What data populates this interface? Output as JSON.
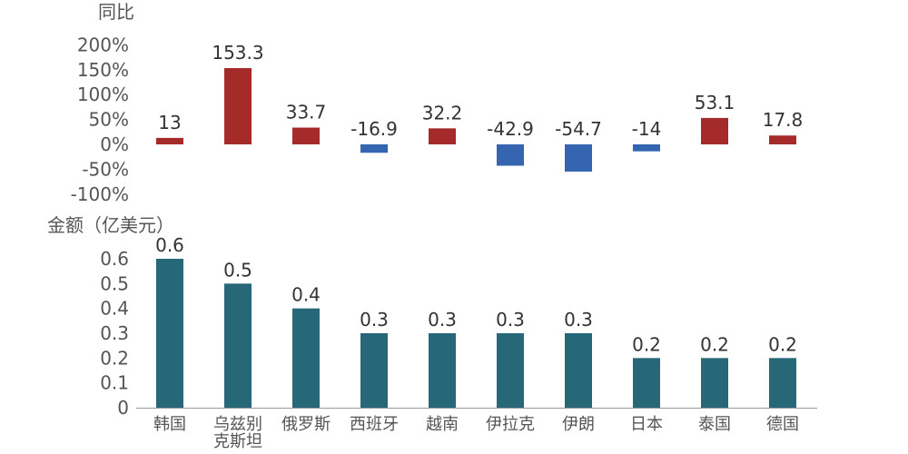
{
  "colors": {
    "positive": "#a52a2a",
    "negative": "#3565b0",
    "amount": "#266877",
    "axis": "#999999",
    "text": "#555555"
  },
  "chart_data": [
    {
      "type": "bar",
      "title": "同比",
      "yticks": [
        "200%",
        "150%",
        "100%",
        "50%",
        "0%",
        "-50%",
        "-100%"
      ],
      "ylim": [
        -100,
        200
      ],
      "categories": [
        "韩国",
        "乌兹别克斯坦",
        "俄罗斯",
        "西班牙",
        "越南",
        "伊拉克",
        "伊朗",
        "日本",
        "泰国",
        "德国"
      ],
      "values": [
        13,
        153.3,
        33.7,
        -16.9,
        32.2,
        -42.9,
        -54.7,
        -14,
        53.1,
        17.8
      ],
      "value_labels": [
        "13",
        "153.3",
        "33.7",
        "-16.9",
        "32.2",
        "-42.9",
        "-54.7",
        "-14",
        "53.1",
        "17.8"
      ]
    },
    {
      "type": "bar",
      "title": "金额（亿美元）",
      "yticks": [
        "0.6",
        "0.5",
        "0.4",
        "0.3",
        "0.2",
        "0.1",
        "0"
      ],
      "ylim": [
        0,
        0.6
      ],
      "categories": [
        "韩国",
        "乌兹别克斯坦",
        "俄罗斯",
        "西班牙",
        "越南",
        "伊拉克",
        "伊朗",
        "日本",
        "泰国",
        "德国"
      ],
      "category_labels": [
        [
          "韩国"
        ],
        [
          "乌兹别",
          "克斯坦"
        ],
        [
          "俄罗斯"
        ],
        [
          "西班牙"
        ],
        [
          "越南"
        ],
        [
          "伊拉克"
        ],
        [
          "伊朗"
        ],
        [
          "日本"
        ],
        [
          "泰国"
        ],
        [
          "德国"
        ]
      ],
      "values": [
        0.6,
        0.5,
        0.4,
        0.3,
        0.3,
        0.3,
        0.3,
        0.2,
        0.2,
        0.2
      ],
      "value_labels": [
        "0.6",
        "0.5",
        "0.4",
        "0.3",
        "0.3",
        "0.3",
        "0.3",
        "0.2",
        "0.2",
        "0.2"
      ]
    }
  ]
}
